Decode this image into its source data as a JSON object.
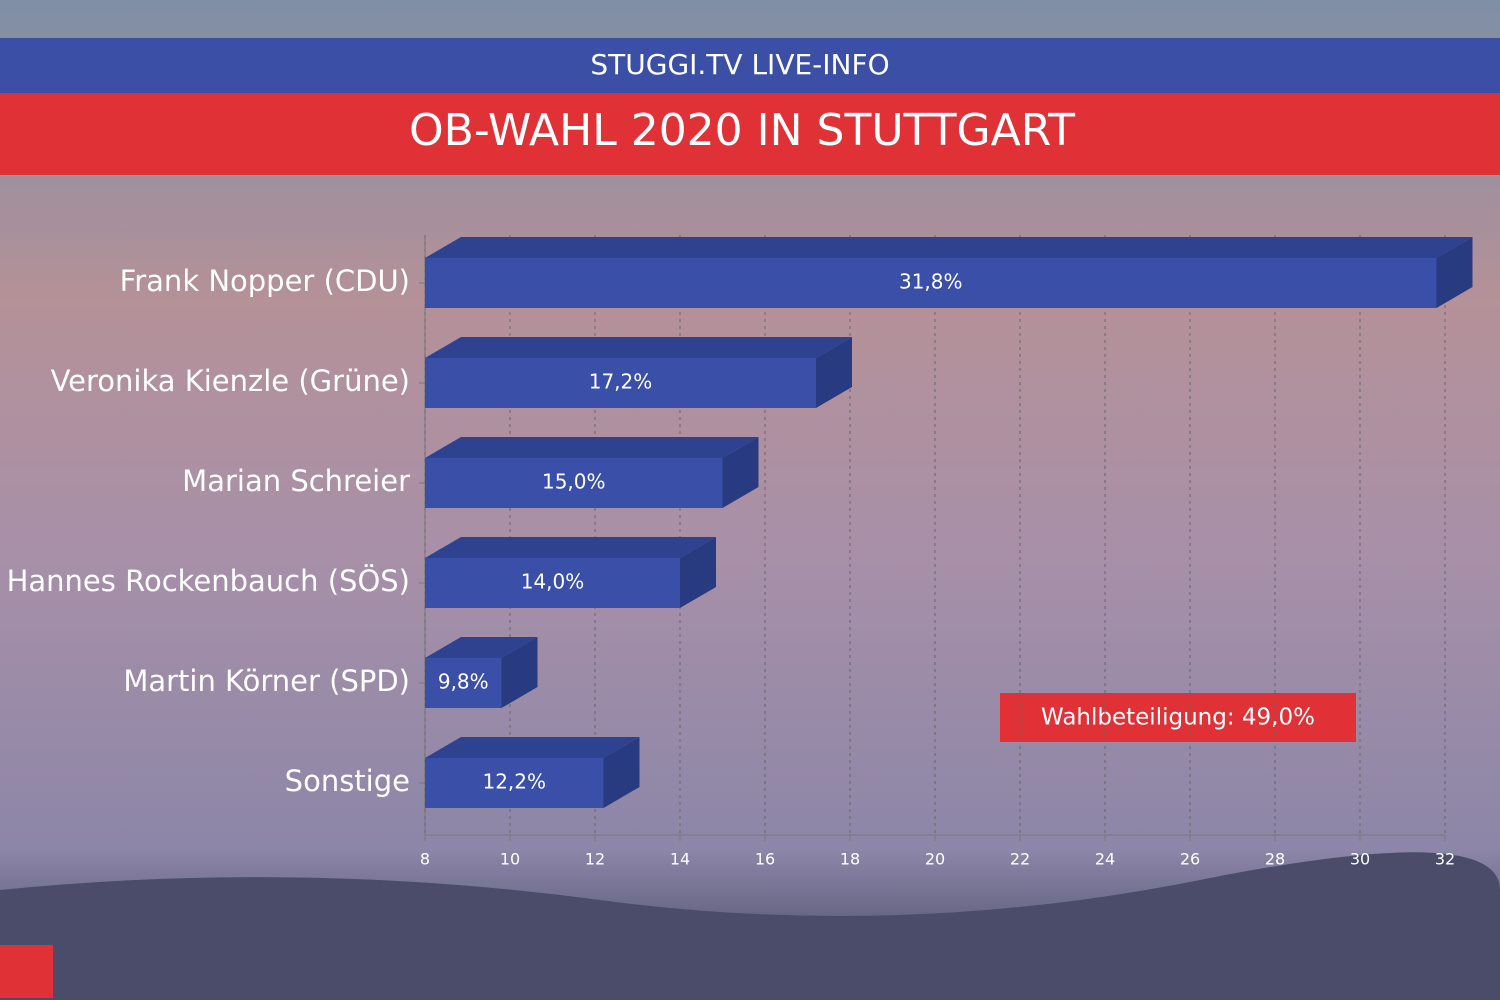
{
  "header": {
    "channel": "STUGGI.TV LIVE-INFO"
  },
  "chart_data": {
    "type": "bar",
    "orientation": "horizontal",
    "title": "OB-WAHL 2020 IN STUTTGART",
    "categories": [
      "Frank Nopper (CDU)",
      "Veronika Kienzle (Grüne)",
      "Marian Schreier",
      "Hannes Rockenbauch (SÖS)",
      "Martin Körner (SPD)",
      "Sonstige"
    ],
    "values": [
      31.8,
      17.2,
      15.0,
      14.0,
      9.8,
      12.2
    ],
    "value_labels": [
      "31,8%",
      "17,2%",
      "15,0%",
      "14,0%",
      "9,8%",
      "12,2%"
    ],
    "color": "#3a4fa8",
    "xlim": [
      8,
      32
    ],
    "xticks": [
      8,
      10,
      12,
      14,
      16,
      18,
      20,
      22,
      24,
      26,
      28,
      30,
      32
    ],
    "grid": true,
    "annotation": "Wahlbeteiligung: 49,0%"
  }
}
